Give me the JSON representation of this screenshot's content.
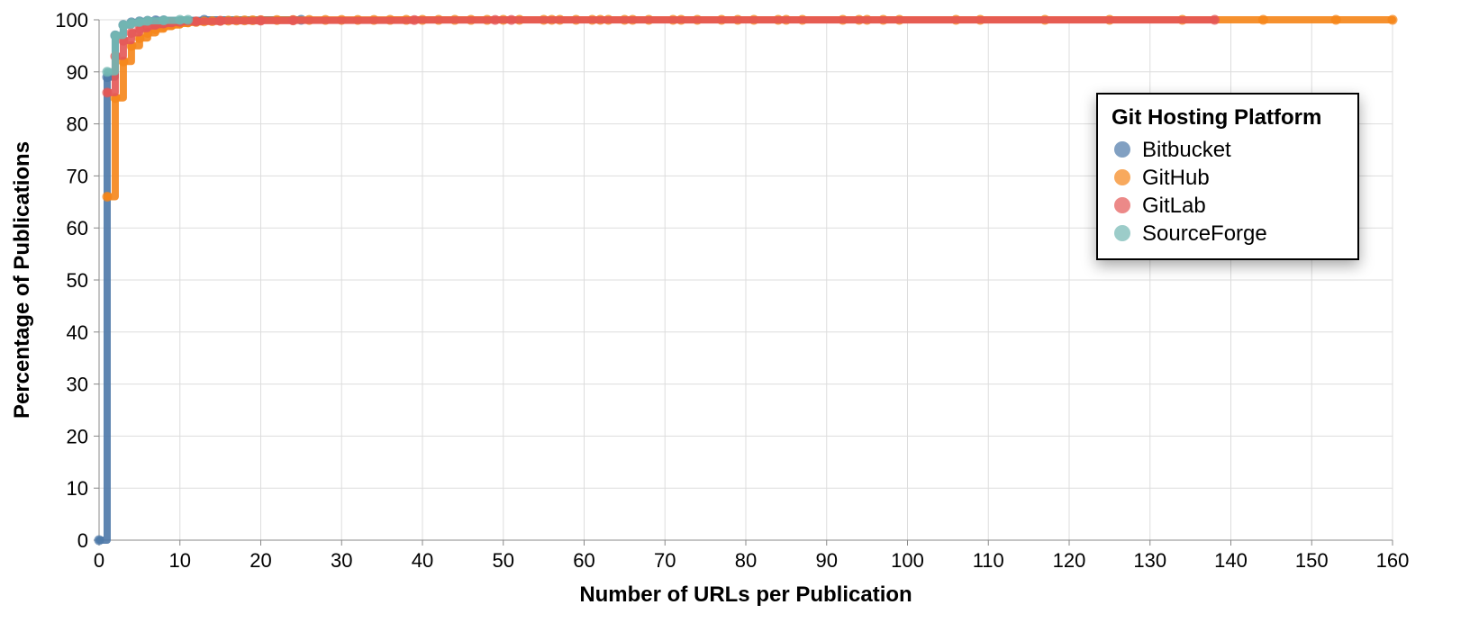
{
  "chart_data": {
    "type": "line",
    "xlabel": "Number of URLs per Publication",
    "ylabel": "Percentage of Publications",
    "xlim": [
      0,
      160
    ],
    "ylim": [
      0,
      100
    ],
    "x_ticks": [
      0,
      10,
      20,
      30,
      40,
      50,
      60,
      70,
      80,
      90,
      100,
      110,
      120,
      130,
      140,
      150,
      160
    ],
    "y_ticks": [
      0,
      10,
      20,
      30,
      40,
      50,
      60,
      70,
      80,
      90,
      100
    ],
    "grid": true,
    "legend": {
      "title": "Git Hosting Platform",
      "placement": "top-right"
    },
    "series": [
      {
        "name": "Bitbucket",
        "color": "#4c78a8",
        "x": [
          0,
          1,
          2,
          3,
          4,
          5,
          6,
          7,
          8,
          13,
          25
        ],
        "y": [
          0,
          89,
          97,
          99,
          99.5,
          99.7,
          99.8,
          99.9,
          99.9,
          100,
          100
        ]
      },
      {
        "name": "GitHub",
        "color": "#f58518",
        "x": [
          1,
          2,
          3,
          4,
          5,
          6,
          7,
          8,
          9,
          10,
          11,
          12,
          13,
          14,
          15,
          16,
          17,
          18,
          19,
          20,
          22,
          24,
          26,
          28,
          30,
          32,
          34,
          36,
          38,
          40,
          42,
          44,
          46,
          48,
          50,
          52,
          55,
          56,
          57,
          59,
          61,
          62,
          63,
          65,
          66,
          68,
          71,
          72,
          74,
          77,
          79,
          81,
          84,
          85,
          87,
          92,
          94,
          95,
          97,
          99,
          106,
          109,
          117,
          125,
          134,
          144,
          153,
          160
        ],
        "y": [
          66,
          85,
          92,
          95,
          96.5,
          97.5,
          98.2,
          98.7,
          99,
          99.3,
          99.5,
          99.6,
          99.7,
          99.75,
          99.8,
          99.85,
          99.88,
          99.9,
          99.92,
          99.93,
          99.95,
          99.96,
          99.97,
          99.97,
          99.98,
          99.98,
          99.98,
          99.99,
          99.99,
          99.99,
          99.99,
          99.99,
          99.99,
          99.99,
          100,
          100,
          100,
          100,
          100,
          100,
          100,
          100,
          100,
          100,
          100,
          100,
          100,
          100,
          100,
          100,
          100,
          100,
          100,
          100,
          100,
          100,
          100,
          100,
          100,
          100,
          100,
          100,
          100,
          100,
          100,
          100,
          100,
          100
        ]
      },
      {
        "name": "GitLab",
        "color": "#e45756",
        "x": [
          1,
          2,
          3,
          4,
          5,
          6,
          7,
          8,
          9,
          10,
          12,
          15,
          20,
          24,
          39,
          49,
          51,
          138
        ],
        "y": [
          86,
          93,
          96,
          97.5,
          98.3,
          98.8,
          99.1,
          99.3,
          99.5,
          99.6,
          99.7,
          99.8,
          99.85,
          99.9,
          99.95,
          99.97,
          99.98,
          100
        ]
      },
      {
        "name": "SourceForge",
        "color": "#72b7b2",
        "x": [
          1,
          2,
          3,
          4,
          5,
          6,
          8,
          10,
          11
        ],
        "y": [
          90,
          97,
          99,
          99.4,
          99.6,
          99.8,
          99.9,
          100,
          100
        ]
      }
    ]
  }
}
